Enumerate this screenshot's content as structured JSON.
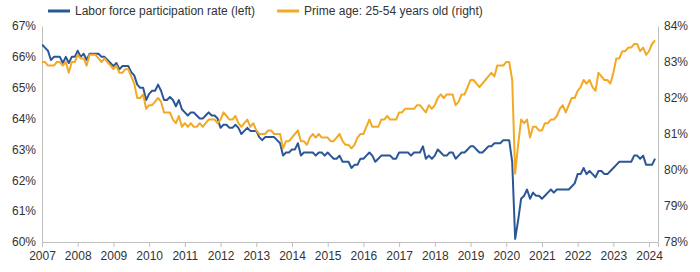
{
  "chart_data": {
    "type": "line",
    "x": [
      2007,
      2007.083,
      2007.167,
      2007.25,
      2007.333,
      2007.417,
      2007.5,
      2007.583,
      2007.667,
      2007.75,
      2007.833,
      2007.917,
      2008,
      2008.083,
      2008.167,
      2008.25,
      2008.333,
      2008.417,
      2008.5,
      2008.583,
      2008.667,
      2008.75,
      2008.833,
      2008.917,
      2009,
      2009.083,
      2009.167,
      2009.25,
      2009.333,
      2009.417,
      2009.5,
      2009.583,
      2009.667,
      2009.75,
      2009.833,
      2009.917,
      2010,
      2010.083,
      2010.167,
      2010.25,
      2010.333,
      2010.417,
      2010.5,
      2010.583,
      2010.667,
      2010.75,
      2010.833,
      2010.917,
      2011,
      2011.083,
      2011.167,
      2011.25,
      2011.333,
      2011.417,
      2011.5,
      2011.583,
      2011.667,
      2011.75,
      2011.833,
      2011.917,
      2012,
      2012.083,
      2012.167,
      2012.25,
      2012.333,
      2012.417,
      2012.5,
      2012.583,
      2012.667,
      2012.75,
      2012.833,
      2012.917,
      2013,
      2013.083,
      2013.167,
      2013.25,
      2013.333,
      2013.417,
      2013.5,
      2013.583,
      2013.667,
      2013.75,
      2013.833,
      2013.917,
      2014,
      2014.083,
      2014.167,
      2014.25,
      2014.333,
      2014.417,
      2014.5,
      2014.583,
      2014.667,
      2014.75,
      2014.833,
      2014.917,
      2015,
      2015.083,
      2015.167,
      2015.25,
      2015.333,
      2015.417,
      2015.5,
      2015.583,
      2015.667,
      2015.75,
      2015.833,
      2015.917,
      2016,
      2016.083,
      2016.167,
      2016.25,
      2016.333,
      2016.417,
      2016.5,
      2016.583,
      2016.667,
      2016.75,
      2016.833,
      2016.917,
      2017,
      2017.083,
      2017.167,
      2017.25,
      2017.333,
      2017.417,
      2017.5,
      2017.583,
      2017.667,
      2017.75,
      2017.833,
      2017.917,
      2018,
      2018.083,
      2018.167,
      2018.25,
      2018.333,
      2018.417,
      2018.5,
      2018.583,
      2018.667,
      2018.75,
      2018.833,
      2018.917,
      2019,
      2019.083,
      2019.167,
      2019.25,
      2019.333,
      2019.417,
      2019.5,
      2019.583,
      2019.667,
      2019.75,
      2019.833,
      2019.917,
      2020,
      2020.083,
      2020.167,
      2020.25,
      2020.333,
      2020.417,
      2020.5,
      2020.583,
      2020.667,
      2020.75,
      2020.833,
      2020.917,
      2021,
      2021.083,
      2021.167,
      2021.25,
      2021.333,
      2021.417,
      2021.5,
      2021.583,
      2021.667,
      2021.75,
      2021.833,
      2021.917,
      2022,
      2022.083,
      2022.167,
      2022.25,
      2022.333,
      2022.417,
      2022.5,
      2022.583,
      2022.667,
      2022.75,
      2022.833,
      2022.917,
      2023,
      2023.083,
      2023.167,
      2023.25,
      2023.333,
      2023.417,
      2023.5,
      2023.583,
      2023.667,
      2023.75,
      2023.833,
      2023.917,
      2024,
      2024.083,
      2024.167
    ],
    "xlim": [
      2007,
      2024.25
    ],
    "xticks": [
      2007,
      2008,
      2009,
      2010,
      2011,
      2012,
      2013,
      2014,
      2015,
      2016,
      2017,
      2018,
      2019,
      2020,
      2021,
      2022,
      2023,
      2024
    ],
    "ylim": [
      60,
      67
    ],
    "yticks": [
      {
        "value": 60,
        "label": "60%"
      },
      {
        "value": 61,
        "label": "61%"
      },
      {
        "value": 62,
        "label": "62%"
      },
      {
        "value": 63,
        "label": "63%"
      },
      {
        "value": 64,
        "label": "64%"
      },
      {
        "value": 65,
        "label": "65%"
      },
      {
        "value": 66,
        "label": "66%"
      },
      {
        "value": 67,
        "label": "67%"
      }
    ],
    "y2lim": [
      78,
      84
    ],
    "y2ticks": [
      {
        "value": 78,
        "label": "78%"
      },
      {
        "value": 79,
        "label": "79%"
      },
      {
        "value": 80,
        "label": "80%"
      },
      {
        "value": 81,
        "label": "81%"
      },
      {
        "value": 82,
        "label": "82%"
      },
      {
        "value": 83,
        "label": "83%"
      },
      {
        "value": 84,
        "label": "84%"
      }
    ],
    "grid": false,
    "legend": "top-left",
    "series": [
      {
        "name": "Labor force participation rate (left)",
        "color": "#2b5797",
        "values": [
          66.4,
          66.3,
          66.2,
          65.9,
          66.0,
          66.0,
          66.0,
          65.8,
          66.0,
          65.8,
          66.0,
          66.0,
          66.2,
          66.0,
          66.1,
          65.9,
          66.1,
          66.1,
          66.1,
          66.1,
          66.0,
          66.0,
          65.9,
          65.8,
          65.7,
          65.8,
          65.6,
          65.7,
          65.7,
          65.7,
          65.5,
          65.4,
          65.1,
          65.0,
          65.0,
          64.6,
          64.8,
          64.9,
          64.9,
          65.1,
          64.9,
          64.6,
          64.6,
          64.7,
          64.6,
          64.4,
          64.6,
          64.3,
          64.2,
          64.1,
          64.2,
          64.2,
          64.1,
          64.0,
          64.0,
          64.1,
          64.2,
          64.1,
          64.1,
          64.0,
          63.7,
          63.8,
          63.8,
          63.7,
          63.7,
          63.8,
          63.7,
          63.5,
          63.6,
          63.7,
          63.6,
          63.6,
          63.6,
          63.4,
          63.3,
          63.4,
          63.4,
          63.4,
          63.4,
          63.3,
          63.2,
          62.8,
          62.9,
          62.9,
          63.0,
          63.0,
          63.2,
          62.8,
          62.9,
          62.9,
          62.9,
          62.9,
          62.8,
          62.9,
          62.9,
          62.8,
          62.9,
          62.8,
          62.7,
          62.7,
          62.8,
          62.6,
          62.6,
          62.6,
          62.4,
          62.5,
          62.5,
          62.7,
          62.7,
          62.8,
          62.9,
          62.8,
          62.6,
          62.7,
          62.8,
          62.8,
          62.8,
          62.8,
          62.7,
          62.7,
          62.9,
          62.9,
          62.9,
          62.9,
          62.8,
          62.9,
          62.9,
          62.9,
          63.1,
          62.7,
          62.8,
          62.7,
          62.8,
          63.0,
          62.9,
          62.8,
          62.8,
          62.9,
          62.9,
          62.7,
          62.8,
          62.9,
          62.9,
          63.0,
          63.1,
          63.1,
          63.0,
          62.9,
          62.9,
          63.0,
          63.1,
          63.1,
          63.2,
          63.2,
          63.2,
          63.3,
          63.3,
          63.3,
          62.6,
          60.1,
          60.7,
          61.4,
          61.5,
          61.7,
          61.4,
          61.6,
          61.5,
          61.5,
          61.4,
          61.5,
          61.6,
          61.7,
          61.6,
          61.7,
          61.7,
          61.7,
          61.7,
          61.7,
          61.8,
          61.9,
          62.2,
          62.2,
          62.4,
          62.2,
          62.3,
          62.2,
          62.1,
          62.3,
          62.3,
          62.2,
          62.2,
          62.3,
          62.4,
          62.5,
          62.6,
          62.6,
          62.6,
          62.6,
          62.6,
          62.8,
          62.8,
          62.7,
          62.8,
          62.5,
          62.5,
          62.5,
          62.7
        ]
      },
      {
        "name": "Prime age: 25-54 years old (right)",
        "color": "#f2a925",
        "axis": "y2",
        "values": [
          83.0,
          83.0,
          82.9,
          82.9,
          82.9,
          83.0,
          83.0,
          82.9,
          83.0,
          82.7,
          83.0,
          83.0,
          83.2,
          83.1,
          83.1,
          82.9,
          83.2,
          83.2,
          83.2,
          83.1,
          83.0,
          83.1,
          83.0,
          82.9,
          82.8,
          82.9,
          82.7,
          82.7,
          82.8,
          82.8,
          82.6,
          82.4,
          82.0,
          82.0,
          82.1,
          81.7,
          81.8,
          81.8,
          81.9,
          82.0,
          81.9,
          81.6,
          81.6,
          81.6,
          81.4,
          81.3,
          81.5,
          81.2,
          81.3,
          81.2,
          81.3,
          81.2,
          81.2,
          81.3,
          81.2,
          81.3,
          81.4,
          81.4,
          81.4,
          81.3,
          81.4,
          81.6,
          81.5,
          81.4,
          81.4,
          81.5,
          81.3,
          81.2,
          81.3,
          81.4,
          81.2,
          81.3,
          81.1,
          81.0,
          81.0,
          81.0,
          81.1,
          81.1,
          81.0,
          81.0,
          81.0,
          80.6,
          80.8,
          80.8,
          80.9,
          81.0,
          81.1,
          80.8,
          80.8,
          80.7,
          80.9,
          81.0,
          80.9,
          81.0,
          80.9,
          80.9,
          80.9,
          80.8,
          80.8,
          80.9,
          81.0,
          80.8,
          80.7,
          80.7,
          80.6,
          80.7,
          80.9,
          81.0,
          81.0,
          81.2,
          81.4,
          81.2,
          81.2,
          81.2,
          81.4,
          81.4,
          81.5,
          81.4,
          81.4,
          81.4,
          81.6,
          81.6,
          81.7,
          81.7,
          81.7,
          81.7,
          81.8,
          81.8,
          81.7,
          81.6,
          81.8,
          81.7,
          81.8,
          82.0,
          82.1,
          82.0,
          82.1,
          82.1,
          82.1,
          81.8,
          81.9,
          82.1,
          82.1,
          82.3,
          82.5,
          82.5,
          82.4,
          82.3,
          82.4,
          82.5,
          82.6,
          82.7,
          82.6,
          82.9,
          82.9,
          82.9,
          83.0,
          83.0,
          82.5,
          79.9,
          80.7,
          81.4,
          81.3,
          81.4,
          80.9,
          81.2,
          81.2,
          81.1,
          81.1,
          81.3,
          81.3,
          81.4,
          81.4,
          81.5,
          81.7,
          81.8,
          81.6,
          81.8,
          82.0,
          82.0,
          82.2,
          82.3,
          82.5,
          82.4,
          82.5,
          82.3,
          82.2,
          82.7,
          82.6,
          82.5,
          82.5,
          82.4,
          82.7,
          83.1,
          83.1,
          83.3,
          83.3,
          83.4,
          83.4,
          83.5,
          83.5,
          83.3,
          83.4,
          83.2,
          83.3,
          83.5,
          83.6
        ]
      }
    ]
  }
}
